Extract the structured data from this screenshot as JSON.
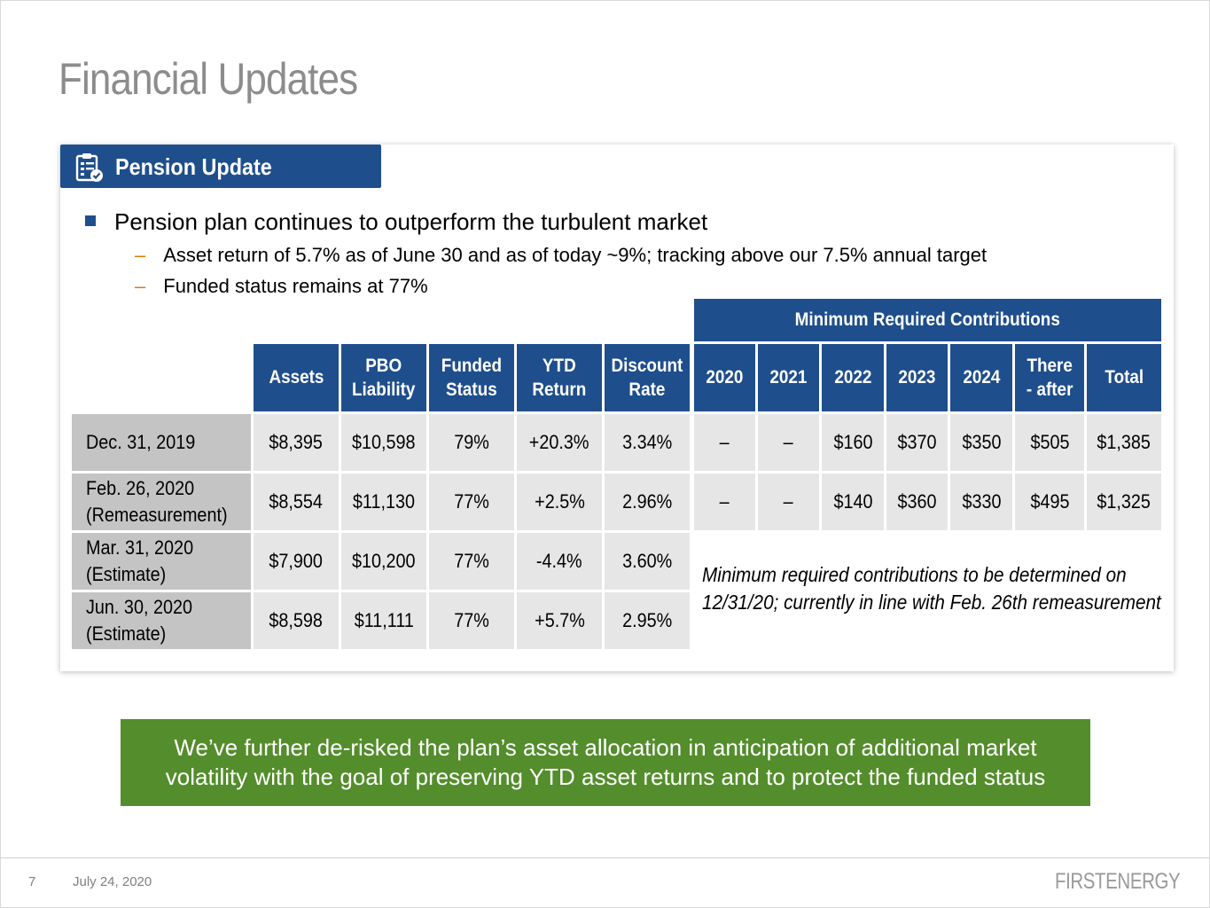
{
  "slide": {
    "title": "Financial Updates"
  },
  "card": {
    "header_icon": "clipboard-check-icon",
    "header": "Pension Update",
    "bullet": "Pension plan continues to outperform the turbulent market",
    "sub_bullets": [
      "Asset return of 5.7% as of June 30 and as of today ~9%; tracking above our 7.5% annual target",
      "Funded status remains at 77%"
    ]
  },
  "left_table": {
    "headers": [
      [
        "Assets"
      ],
      [
        "PBO",
        "Liability"
      ],
      [
        "Funded",
        "Status"
      ],
      [
        "YTD",
        "Return"
      ],
      [
        "Discount",
        "Rate"
      ]
    ],
    "rows": [
      {
        "label": [
          "Dec. 31, 2019"
        ],
        "values": [
          "$8,395",
          "$10,598",
          "79%",
          "+20.3%",
          "3.34%"
        ]
      },
      {
        "label": [
          "Feb. 26, 2020",
          "(Remeasurement)"
        ],
        "values": [
          "$8,554",
          "$11,130",
          "77%",
          "+2.5%",
          "2.96%"
        ]
      },
      {
        "label": [
          "Mar. 31, 2020",
          "(Estimate)"
        ],
        "values": [
          "$7,900",
          "$10,200",
          "77%",
          "-4.4%",
          "3.60%"
        ]
      },
      {
        "label": [
          "Jun. 30, 2020",
          "(Estimate)"
        ],
        "values": [
          "$8,598",
          "$11,111",
          "77%",
          "+5.7%",
          "2.95%"
        ]
      }
    ]
  },
  "right_table": {
    "title": "Minimum Required Contributions",
    "headers": [
      [
        "2020"
      ],
      [
        "2021"
      ],
      [
        "2022"
      ],
      [
        "2023"
      ],
      [
        "2024"
      ],
      [
        "There",
        "- after"
      ],
      [
        "Total"
      ]
    ],
    "rows": [
      [
        "–",
        "–",
        "$160",
        "$370",
        "$350",
        "$505",
        "$1,385"
      ],
      [
        "–",
        "–",
        "$140",
        "$360",
        "$330",
        "$495",
        "$1,325"
      ]
    ],
    "note": [
      "Minimum required contributions to be determined on",
      "12/31/20; currently in line with Feb. 26th remeasurement"
    ]
  },
  "callout": {
    "lines": [
      "We’ve further de-risked the plan’s asset allocation in anticipation of additional market",
      "volatility with the goal of preserving YTD asset returns and to protect the funded status"
    ],
    "color": "#548d2c"
  },
  "footer": {
    "page_number": "7",
    "date": "July 24, 2020",
    "brand": "FIRSTENERGY"
  },
  "colors": {
    "header_blue": "#1f4e8c",
    "label_gray": "#c4c4c4",
    "cell_gray": "#e6e6e6",
    "title_gray": "#8c8c8c",
    "dash_orange": "#e07b00"
  }
}
